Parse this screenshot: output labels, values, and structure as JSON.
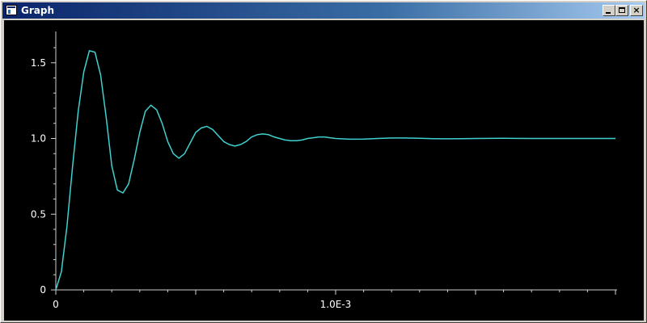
{
  "window": {
    "title": "Graph",
    "icon": "app-window-icon",
    "buttons": {
      "minimize": "minimize-icon",
      "maximize": "maximize-icon",
      "close": "×"
    }
  },
  "colors": {
    "titlebar_start": "#0a246a",
    "titlebar_end": "#a6caf0",
    "plot_background": "#000000",
    "axes": "#d0d0d0",
    "series": "#40d0d0",
    "text": "#ffffff"
  },
  "chart_data": {
    "type": "line",
    "title": "",
    "xlabel": "",
    "ylabel": "",
    "xlim": [
      0,
      0.002
    ],
    "ylim": [
      0,
      1.6
    ],
    "grid": false,
    "y_ticks": [
      {
        "value": 0,
        "label": "0"
      },
      {
        "value": 0.5,
        "label": "0.5"
      },
      {
        "value": 1.0,
        "label": "1.0"
      },
      {
        "value": 1.5,
        "label": "1.5"
      }
    ],
    "x_ticks": [
      {
        "value": 0,
        "label": "0"
      },
      {
        "value": 0.001,
        "label": "1.0E-3"
      }
    ],
    "series": [
      {
        "x": [
          0,
          2e-05,
          4e-05,
          6e-05,
          8e-05,
          0.0001,
          0.00012,
          0.00014,
          0.00016,
          0.00018,
          0.0002,
          0.00022,
          0.00024,
          0.00026,
          0.00028,
          0.0003,
          0.00032,
          0.00034,
          0.00036,
          0.00038,
          0.0004,
          0.00042,
          0.00044,
          0.00046,
          0.00048,
          0.0005,
          0.00052,
          0.00054,
          0.00056,
          0.00058,
          0.0006,
          0.00062,
          0.00064,
          0.00066,
          0.00068,
          0.0007,
          0.00072,
          0.00074,
          0.00076,
          0.00078,
          0.0008,
          0.00082,
          0.00084,
          0.00086,
          0.00088,
          0.0009,
          0.00092,
          0.00094,
          0.00096,
          0.00098,
          0.001,
          0.00105,
          0.0011,
          0.00115,
          0.0012,
          0.00125,
          0.0013,
          0.00135,
          0.0014,
          0.00145,
          0.0015,
          0.0016,
          0.0017,
          0.0018,
          0.0019,
          0.002
        ],
        "y": [
          0,
          0.12,
          0.42,
          0.82,
          1.18,
          1.44,
          1.58,
          1.57,
          1.42,
          1.14,
          0.82,
          0.66,
          0.64,
          0.7,
          0.86,
          1.04,
          1.18,
          1.22,
          1.19,
          1.1,
          0.98,
          0.9,
          0.87,
          0.9,
          0.97,
          1.04,
          1.07,
          1.08,
          1.06,
          1.02,
          0.98,
          0.96,
          0.95,
          0.96,
          0.98,
          1.01,
          1.025,
          1.03,
          1.025,
          1.01,
          1.0,
          0.99,
          0.985,
          0.985,
          0.99,
          1.0,
          1.005,
          1.01,
          1.01,
          1.005,
          1.0,
          0.995,
          0.996,
          1.0,
          1.003,
          1.003,
          1.001,
          0.999,
          0.998,
          0.999,
          1.0,
          1.001,
          1.0,
          1.0,
          1.0,
          1.0
        ]
      }
    ]
  }
}
